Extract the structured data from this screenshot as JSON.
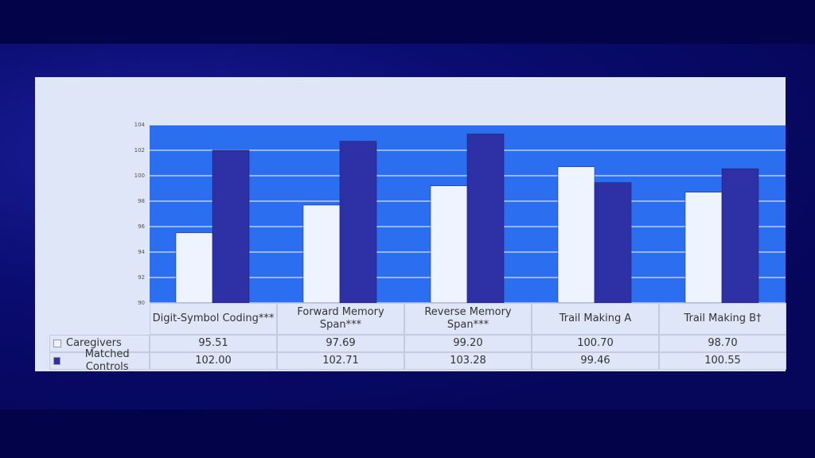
{
  "chart_data": {
    "type": "bar",
    "categories": [
      "Digit-Symbol Coding***",
      "Forward Memory Span***",
      "Reverse Memory Span***",
      "Trail Making A",
      "Trail Making B†"
    ],
    "series": [
      {
        "name": "Caregivers",
        "color": "#eef4ff",
        "values": [
          95.51,
          97.69,
          99.2,
          100.7,
          98.7
        ],
        "value_labels": [
          "95.51",
          "97.69",
          "99.20",
          "100.70",
          "98.70"
        ]
      },
      {
        "name": "Matched Controls",
        "color": "#2e30a6",
        "values": [
          102.0,
          102.71,
          103.28,
          99.46,
          100.55
        ],
        "value_labels": [
          "102.00",
          "102.71",
          "103.28",
          "99.46",
          "100.55"
        ]
      }
    ],
    "ylim": [
      90,
      104
    ],
    "yticks": [
      90,
      92,
      94,
      96,
      98,
      100,
      102,
      104
    ],
    "grid": true
  }
}
